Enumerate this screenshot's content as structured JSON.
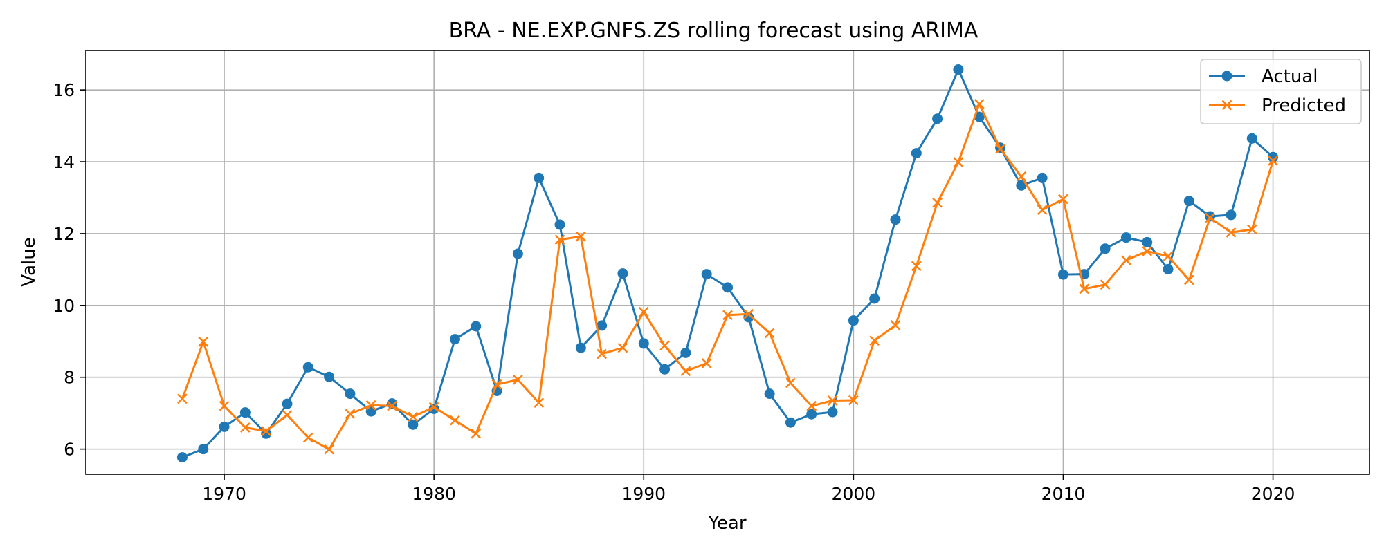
{
  "chart_data": {
    "type": "line",
    "title": "BRA - NE.EXP.GNFS.ZS rolling forecast using ARIMA",
    "xlabel": "Year",
    "ylabel": "Value",
    "xlim": [
      1963.4,
      2024.6
    ],
    "ylim": [
      5.3,
      17.1
    ],
    "xticks": [
      1970,
      1980,
      1990,
      2000,
      2010,
      2020
    ],
    "yticks": [
      6,
      8,
      10,
      12,
      14,
      16
    ],
    "grid": true,
    "legend_position": "top-right",
    "x": [
      1968,
      1969,
      1970,
      1971,
      1972,
      1973,
      1974,
      1975,
      1976,
      1977,
      1978,
      1979,
      1980,
      1981,
      1982,
      1983,
      1984,
      1985,
      1986,
      1987,
      1988,
      1989,
      1990,
      1991,
      1992,
      1993,
      1994,
      1995,
      1996,
      1997,
      1998,
      1999,
      2000,
      2001,
      2002,
      2003,
      2004,
      2005,
      2006,
      2007,
      2008,
      2009,
      2010,
      2011,
      2012,
      2013,
      2014,
      2015,
      2016,
      2017,
      2018,
      2019,
      2020
    ],
    "series": [
      {
        "name": "Actual",
        "color": "#1f77b4",
        "marker": "circle",
        "values": [
          5.77,
          6.0,
          6.62,
          7.02,
          6.43,
          7.26,
          8.28,
          8.01,
          7.54,
          7.05,
          7.27,
          6.68,
          7.12,
          9.06,
          9.42,
          7.62,
          11.44,
          13.55,
          12.25,
          8.82,
          9.44,
          10.89,
          8.94,
          8.22,
          8.68,
          10.87,
          10.5,
          9.67,
          7.54,
          6.74,
          6.97,
          7.03,
          9.58,
          10.19,
          12.39,
          14.24,
          15.2,
          16.57,
          15.25,
          14.39,
          13.34,
          13.55,
          10.86,
          10.87,
          11.58,
          11.89,
          11.76,
          11.01,
          12.91,
          12.48,
          12.52,
          14.65,
          14.13
        ]
      },
      {
        "name": "Predicted",
        "color": "#ff7f0e",
        "marker": "x",
        "values": [
          7.4,
          8.99,
          7.2,
          6.6,
          6.5,
          6.95,
          6.32,
          5.99,
          6.98,
          7.22,
          7.2,
          6.9,
          7.17,
          6.8,
          6.43,
          7.8,
          7.93,
          7.29,
          11.83,
          11.92,
          8.65,
          8.82,
          9.82,
          8.88,
          8.17,
          8.39,
          9.73,
          9.76,
          9.23,
          7.84,
          7.2,
          7.35,
          7.36,
          9.02,
          9.45,
          11.1,
          12.86,
          13.99,
          15.61,
          14.36,
          13.59,
          12.66,
          12.96,
          10.46,
          10.58,
          11.26,
          11.51,
          11.37,
          10.71,
          12.44,
          12.03,
          12.12,
          14.03
        ]
      }
    ]
  }
}
